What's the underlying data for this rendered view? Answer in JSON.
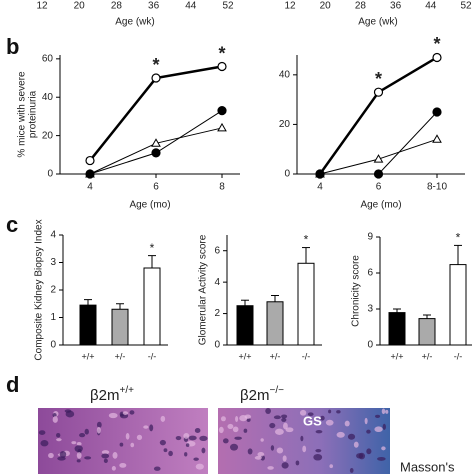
{
  "panel_labels": {
    "b": "b",
    "c": "c",
    "d": "d"
  },
  "chart_data": [
    {
      "type": "axis",
      "xlim": [
        12,
        52
      ],
      "xticks": [
        12,
        20,
        28,
        36,
        44,
        52
      ],
      "x_label": "Age (wk)"
    },
    {
      "type": "axis",
      "xlim": [
        12,
        52
      ],
      "xticks": [
        12,
        20,
        28,
        36,
        44,
        52
      ],
      "x_label": "Age (wk)"
    },
    {
      "type": "line",
      "y_label": [
        "% mice with severe",
        "proteinuria"
      ],
      "x_label": "Age (mo)",
      "categories": [
        "4",
        "6",
        "8"
      ],
      "ylim": [
        0,
        62
      ],
      "yticks": [
        0,
        20,
        40,
        60
      ],
      "series": [
        {
          "color": "#000000",
          "marker": "circle-open",
          "line_width": 2.5,
          "values": [
            7,
            50,
            56
          ]
        },
        {
          "color": "#000000",
          "marker": "triangle-open",
          "line_width": 1,
          "values": [
            0,
            16,
            24
          ]
        },
        {
          "color": "#000000",
          "marker": "circle-filled",
          "line_width": 1,
          "values": [
            0,
            11,
            33
          ]
        }
      ],
      "annotations": [
        {
          "category": "6",
          "text": "*"
        },
        {
          "category": "8",
          "text": "*"
        }
      ]
    },
    {
      "type": "line",
      "x_label": "Age (mo)",
      "categories": [
        "4",
        "6",
        "8-10"
      ],
      "ylim": [
        0,
        48
      ],
      "yticks": [
        0,
        20,
        40
      ],
      "series": [
        {
          "color": "#000000",
          "marker": "circle-open",
          "line_width": 2.5,
          "values": [
            0,
            33,
            47
          ]
        },
        {
          "color": "#000000",
          "marker": "triangle-open",
          "line_width": 1,
          "values": [
            0,
            6,
            14
          ]
        },
        {
          "color": "#000000",
          "marker": "circle-filled",
          "line_width": 1,
          "values": [
            0,
            0,
            25
          ]
        }
      ],
      "annotations": [
        {
          "category": "6",
          "text": "*"
        },
        {
          "category": "8-10",
          "text": "*"
        }
      ]
    },
    {
      "type": "bar",
      "y_label": "Composite Kidney Biopsy Index",
      "categories": [
        "+/+",
        "+/-",
        "-/-"
      ],
      "values": [
        1.45,
        1.3,
        2.8
      ],
      "errors": [
        0.2,
        0.2,
        0.45
      ],
      "colors": [
        "#000000",
        "#aaaaaa",
        "#ffffff"
      ],
      "ylim": [
        0,
        4
      ],
      "yticks": [
        0,
        1,
        2,
        3,
        4
      ],
      "annotations": [
        {
          "category": "-/-",
          "text": "*"
        }
      ]
    },
    {
      "type": "bar",
      "y_label": "Glomerular Activity score",
      "categories": [
        "+/+",
        "+/-",
        "-/-"
      ],
      "values": [
        2.5,
        2.75,
        5.2
      ],
      "errors": [
        0.35,
        0.4,
        1.0
      ],
      "colors": [
        "#000000",
        "#aaaaaa",
        "#ffffff"
      ],
      "ylim": [
        0,
        7
      ],
      "yticks": [
        0,
        2,
        4,
        6
      ],
      "annotations": [
        {
          "category": "-/-",
          "text": "*"
        }
      ]
    },
    {
      "type": "bar",
      "y_label": "Chronicity score",
      "categories": [
        "+/+",
        "+/-",
        "-/-"
      ],
      "values": [
        2.7,
        2.2,
        6.7
      ],
      "errors": [
        0.3,
        0.3,
        1.6
      ],
      "colors": [
        "#000000",
        "#aaaaaa",
        "#ffffff"
      ],
      "ylim": [
        0,
        9
      ],
      "yticks": [
        0,
        3,
        6,
        9
      ],
      "annotations": [
        {
          "category": "-/-",
          "text": "*"
        }
      ]
    }
  ],
  "images": [
    {
      "label": "β2m",
      "superscript": "+/+"
    },
    {
      "label": "β2m",
      "superscript": "−/−",
      "annotation": "GS"
    }
  ],
  "stain": "Masson's"
}
